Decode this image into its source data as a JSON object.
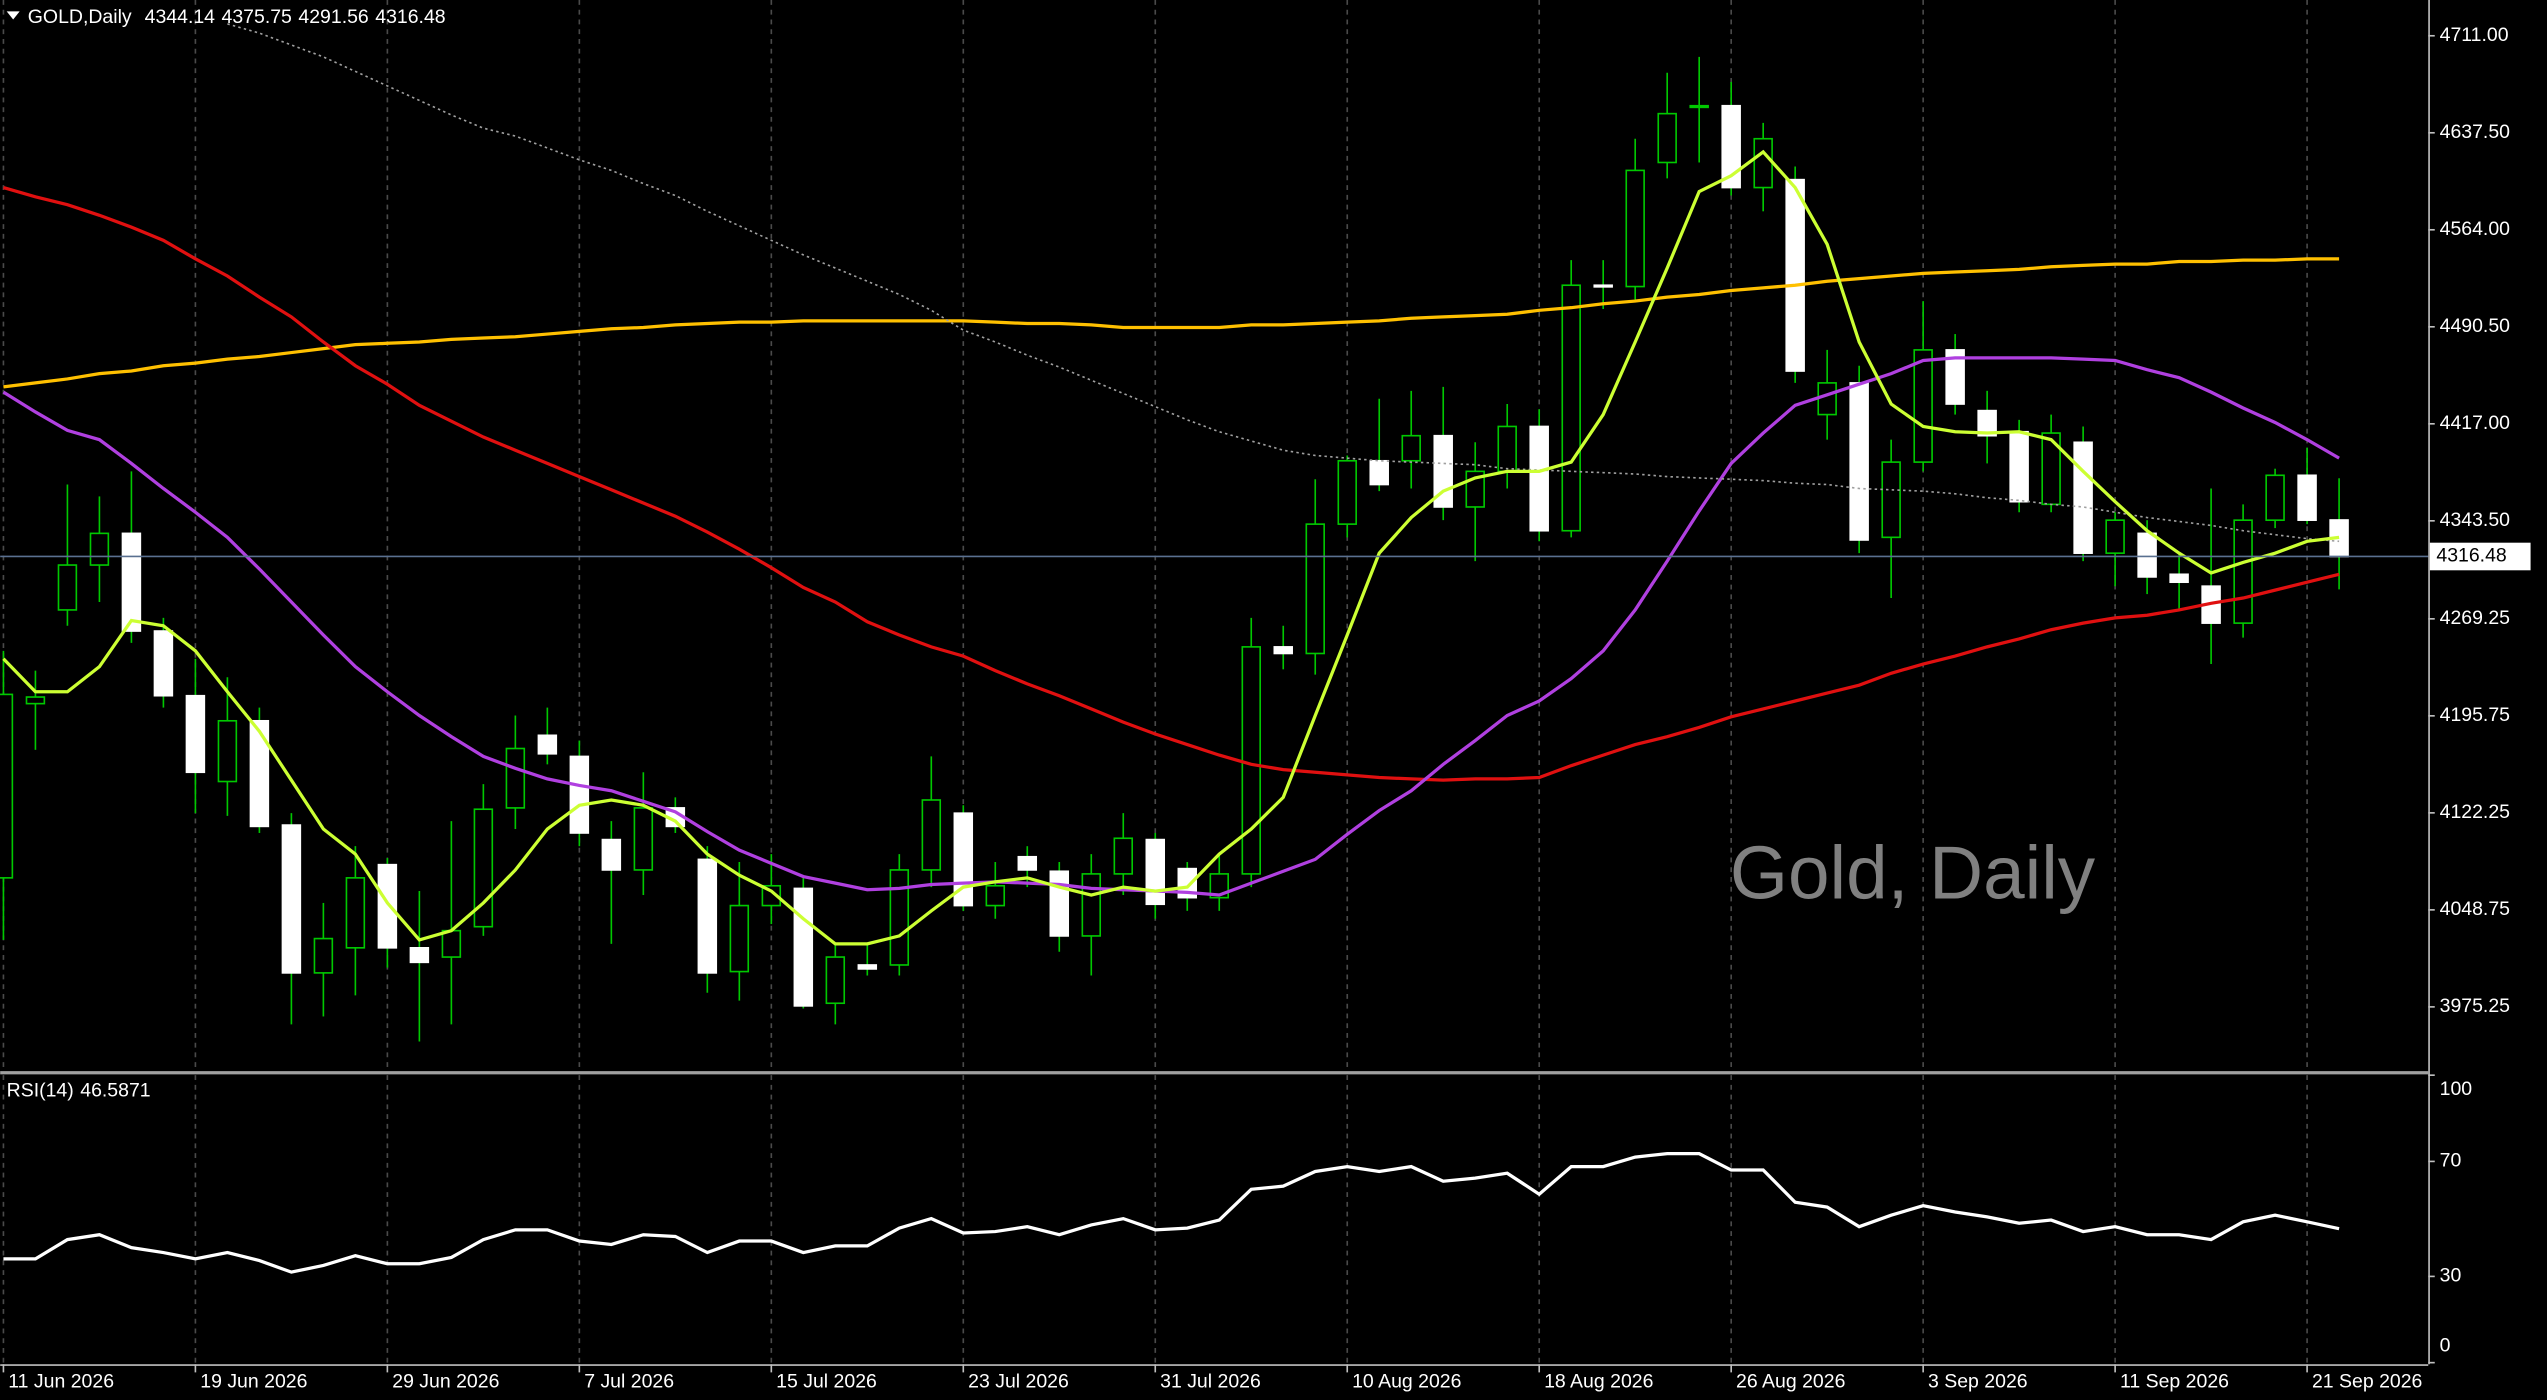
{
  "chart_data": [
    {
      "type": "candlestick",
      "title": "GOLD,Daily",
      "watermark": "Gold, Daily",
      "categories": [
        "11 Jun 2026",
        null,
        null,
        null,
        null,
        null,
        "19 Jun 2026",
        null,
        null,
        null,
        null,
        null,
        "29 Jun 2026",
        null,
        null,
        null,
        null,
        null,
        "7 Jul 2026",
        null,
        null,
        null,
        null,
        null,
        "15 Jul 2026",
        null,
        null,
        null,
        null,
        null,
        "23 Jul 2026",
        null,
        null,
        null,
        null,
        null,
        "31 Jul 2026",
        null,
        null,
        null,
        null,
        null,
        "10 Aug 2026",
        null,
        null,
        null,
        null,
        null,
        "18 Aug 2026",
        null,
        null,
        null,
        null,
        null,
        "26 Aug 2026",
        null,
        null,
        null,
        null,
        null,
        "3 Sep 2026",
        null,
        null,
        null,
        null,
        null,
        "11 Sep 2026",
        null,
        null,
        null,
        null,
        null,
        "21 Sep 2026",
        null
      ],
      "open": [
        4073,
        4205,
        4276,
        4310,
        4334,
        4260,
        4211,
        4146,
        4192,
        4113,
        4001,
        4020,
        4083,
        4020,
        4013,
        4036,
        4126,
        4181,
        4165,
        4102,
        4079,
        4126,
        4087,
        4002,
        4052,
        4065,
        3978,
        4007,
        4007,
        4079,
        4122,
        4052,
        4089,
        4078,
        4029,
        4076,
        4102,
        4080,
        4058,
        4076,
        4248,
        4243,
        4341,
        4389,
        4389,
        4408,
        4354,
        4381,
        4415,
        4336,
        4522,
        4521,
        4615,
        4657,
        4658,
        4596,
        4602,
        4424,
        4448,
        4331,
        4388,
        4473,
        4427,
        4411,
        4356,
        4403,
        4319,
        4334,
        4303,
        4294,
        4266,
        4344,
        4378,
        4344.14
      ],
      "high": [
        4245,
        4230,
        4371,
        4362,
        4381,
        4270,
        4239,
        4225,
        4202,
        4122,
        4054,
        4097,
        4088,
        4063,
        4116,
        4144,
        4196,
        4202,
        4177,
        4116,
        4153,
        4134,
        4097,
        4085,
        4091,
        4073,
        4023,
        4023,
        4091,
        4165,
        4128,
        4085,
        4097,
        4085,
        4091,
        4122,
        4107,
        4085,
        4091,
        4270,
        4264,
        4375,
        4393,
        4436,
        4442,
        4445,
        4403,
        4432,
        4428,
        4541,
        4541,
        4633,
        4683,
        4695,
        4676,
        4645,
        4612,
        4473,
        4461,
        4405,
        4510,
        4485,
        4442,
        4420,
        4424,
        4415,
        4350,
        4344,
        4319,
        4368,
        4356,
        4383,
        4399,
        4375.75
      ],
      "low": [
        4026,
        4170,
        4264,
        4282,
        4251,
        4202,
        4122,
        4120,
        4107,
        3962,
        3968,
        3984,
        4005,
        3949,
        3962,
        4029,
        4110,
        4159,
        4097,
        4023,
        4060,
        4107,
        3986,
        3980,
        4038,
        3974,
        3962,
        3999,
        3999,
        4066,
        4048,
        4042,
        4066,
        4017,
        3999,
        4060,
        4042,
        4048,
        4048,
        4066,
        4231,
        4227,
        4331,
        4366,
        4368,
        4344,
        4313,
        4368,
        4328,
        4331,
        4504,
        4510,
        4603,
        4615,
        4590,
        4578,
        4448,
        4405,
        4319,
        4285,
        4381,
        4424,
        4387,
        4350,
        4350,
        4313,
        4294,
        4288,
        4276,
        4235,
        4255,
        4338,
        4341,
        4291.56
      ],
      "close": [
        4212,
        4210,
        4310,
        4334,
        4260,
        4211,
        4153,
        4192,
        4112,
        4001,
        4027,
        4073,
        4020,
        4009,
        4033,
        4125,
        4171,
        4167,
        4107,
        4079,
        4126,
        4112,
        4001,
        4052,
        4067,
        3976,
        4013,
        4004,
        4079,
        4132,
        4052,
        4067,
        4079,
        4029,
        4076,
        4103,
        4053,
        4058,
        4076,
        4248,
        4243,
        4341,
        4389,
        4371,
        4408,
        4354,
        4381,
        4415,
        4336,
        4522,
        4521,
        4609,
        4652,
        4658,
        4596,
        4633,
        4457,
        4448,
        4329,
        4388,
        4473,
        4432,
        4408,
        4358,
        4410,
        4319,
        4344,
        4301,
        4297,
        4266,
        4344,
        4378,
        4344,
        4316.48
      ],
      "up_color": "#000000",
      "down_color": "#ffffff",
      "wick_color": "#00c800",
      "price_line_color": "#5a7090",
      "ylim": [
        3927.2,
        4738.1
      ],
      "yticks": [
        {
          "value": 4711,
          "label": "4711.00"
        },
        {
          "value": 4637.5,
          "label": "4637.50"
        },
        {
          "value": 4564,
          "label": "4564.00"
        },
        {
          "value": 4490.5,
          "label": "4490.50"
        },
        {
          "value": 4417,
          "label": "4417.00"
        },
        {
          "value": 4343.5,
          "label": "4343.50"
        },
        {
          "value": 4269.25,
          "label": "4269.25"
        },
        {
          "value": 4195.75,
          "label": "4195.75"
        },
        {
          "value": 4122.25,
          "label": "4122.25"
        },
        {
          "value": 4048.75,
          "label": "4048.75"
        },
        {
          "value": 3975.25,
          "label": "3975.25"
        }
      ],
      "grid": true,
      "overlays": [
        {
          "color": "#ffc000",
          "values": [
            4445,
            4448,
            4451,
            4455,
            4457,
            4461,
            4463,
            4466,
            4468,
            4471,
            4474,
            4477,
            4478,
            4479,
            4481,
            4482,
            4483,
            4485,
            4487,
            4489,
            4490,
            4492,
            4493,
            4494,
            4494,
            4495,
            4495,
            4495,
            4495,
            4495,
            4495,
            4494,
            4493,
            4493,
            4492,
            4490,
            4490,
            4490,
            4490,
            4492,
            4492,
            4493,
            4494,
            4495,
            4497,
            4498,
            4499,
            4500,
            4503,
            4505,
            4508,
            4510,
            4513,
            4515,
            4518,
            4520,
            4522,
            4525,
            4527,
            4529,
            4531,
            4532,
            4533,
            4534,
            4536,
            4537,
            4538,
            4538,
            4540,
            4540,
            4541,
            4541,
            4542,
            4542
          ]
        },
        {
          "color": "#e01010",
          "values": [
            4596,
            4589,
            4583,
            4575,
            4566,
            4556,
            4542,
            4529,
            4513,
            4498,
            4479,
            4461,
            4447,
            4431,
            4419,
            4407,
            4397,
            4387,
            4377,
            4367,
            4357,
            4347,
            4335,
            4322,
            4308,
            4293,
            4282,
            4267,
            4257,
            4248,
            4241,
            4230,
            4220,
            4211,
            4201,
            4191,
            4182,
            4174,
            4166,
            4159,
            4155,
            4153,
            4151,
            4149,
            4148,
            4147,
            4148,
            4148,
            4149,
            4158,
            4166,
            4174,
            4180,
            4187,
            4195,
            4201,
            4207,
            4213,
            4219,
            4228,
            4235,
            4241,
            4248,
            4254,
            4261,
            4266,
            4270,
            4272,
            4276,
            4281,
            4285,
            4291,
            4297,
            4303
          ]
        },
        {
          "color": "#b040e0",
          "values": [
            4441,
            4426,
            4412,
            4405,
            4387,
            4368,
            4350,
            4331,
            4307,
            4282,
            4257,
            4233,
            4214,
            4196,
            4180,
            4165,
            4156,
            4148,
            4143,
            4139,
            4131,
            4123,
            4108,
            4094,
            4084,
            4074,
            4069,
            4064,
            4065,
            4068,
            4069,
            4070,
            4069,
            4068,
            4065,
            4064,
            4063,
            4062,
            4060,
            4069,
            4078,
            4087,
            4106,
            4124,
            4139,
            4159,
            4177,
            4196,
            4207,
            4224,
            4245,
            4276,
            4313,
            4351,
            4387,
            4410,
            4431,
            4439,
            4447,
            4455,
            4465,
            4467,
            4467,
            4467,
            4467,
            4466,
            4465,
            4458,
            4452,
            4441,
            4429,
            4418,
            4405,
            4391
          ]
        },
        {
          "color": "#a0a0a0",
          "dotted": true,
          "values": [
            null,
            null,
            null,
            null,
            null,
            null,
            null,
            4720,
            4713,
            4704,
            4695,
            4684,
            4673,
            4662,
            4651,
            4641,
            4635,
            4626,
            4617,
            4609,
            4599,
            4590,
            4578,
            4567,
            4556,
            4545,
            4535,
            4525,
            4515,
            4503,
            4488,
            4479,
            4469,
            4460,
            4450,
            4440,
            4430,
            4420,
            4411,
            4404,
            4397,
            4393,
            4391,
            4389,
            4388,
            4387,
            4386,
            4383,
            4382,
            4381,
            4380,
            4379,
            4377,
            4376,
            4375,
            4374,
            4372,
            4371,
            4368,
            4367,
            4366,
            4364,
            4361,
            4359,
            4356,
            4354,
            4350,
            4346,
            4343,
            4340,
            4336,
            4333,
            4330,
            4328
          ]
        },
        {
          "color": "#ccff33",
          "values": [
            4239,
            4214,
            4214,
            4233,
            4268,
            4264,
            4245,
            4214,
            4184,
            4147,
            4110,
            4091,
            4054,
            4026,
            4033,
            4054,
            4079,
            4110,
            4128,
            4132,
            4128,
            4116,
            4091,
            4075,
            4063,
            4042,
            4023,
            4023,
            4029,
            4048,
            4066,
            4070,
            4073,
            4066,
            4060,
            4066,
            4063,
            4066,
            4091,
            4110,
            4134,
            4196,
            4257,
            4319,
            4346,
            4366,
            4376,
            4381,
            4381,
            4388,
            4424,
            4479,
            4535,
            4593,
            4605,
            4623,
            4596,
            4553,
            4479,
            4432,
            4415,
            4411,
            4410,
            4411,
            4405,
            4381,
            4358,
            4336,
            4319,
            4304,
            4312,
            4319,
            4328,
            4331
          ]
        }
      ]
    },
    {
      "type": "line",
      "title": "RSI(14)",
      "color": "#ffffff",
      "values": [
        36.1,
        36.1,
        42.8,
        44.5,
        40.0,
        38.3,
        36.1,
        38.3,
        35.5,
        31.5,
        33.8,
        37.2,
        34.4,
        34.4,
        36.6,
        42.8,
        46.2,
        46.2,
        42.3,
        41.1,
        44.5,
        43.9,
        38.3,
        42.3,
        42.3,
        38.3,
        40.6,
        40.6,
        46.8,
        50.1,
        45.1,
        45.6,
        47.3,
        44.5,
        47.9,
        50.1,
        46.2,
        46.8,
        49.6,
        60.3,
        61.4,
        66.5,
        68.2,
        66.5,
        68.2,
        63.1,
        64.2,
        65.9,
        58.6,
        68.2,
        68.2,
        71.5,
        72.7,
        72.7,
        67.0,
        67.0,
        55.8,
        54.1,
        47.3,
        51.3,
        54.6,
        52.4,
        50.7,
        48.5,
        49.6,
        45.6,
        47.3,
        44.5,
        44.5,
        42.8,
        49.0,
        51.3,
        49.0,
        46.5871
      ],
      "ylim": [
        0,
        100
      ],
      "yticks": [
        0,
        30,
        70,
        100
      ],
      "grid": true
    }
  ]
}
